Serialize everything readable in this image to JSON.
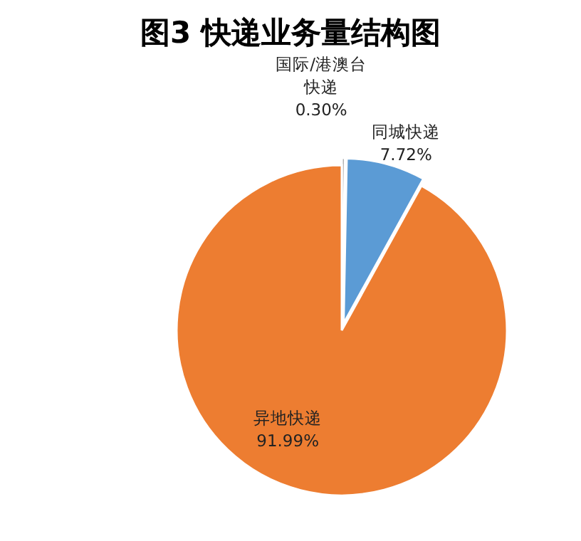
{
  "chart_data": {
    "type": "pie",
    "title": "图3  快递业务量结构图",
    "categories": [
      "国际/港澳台快递",
      "同城快递",
      "异地快递"
    ],
    "values": [
      0.3,
      7.72,
      91.99
    ],
    "colors": [
      "#a5a5a5",
      "#5b9bd5",
      "#ed7d31"
    ],
    "value_labels": [
      "0.30%",
      "7.72%",
      "91.99%"
    ]
  }
}
